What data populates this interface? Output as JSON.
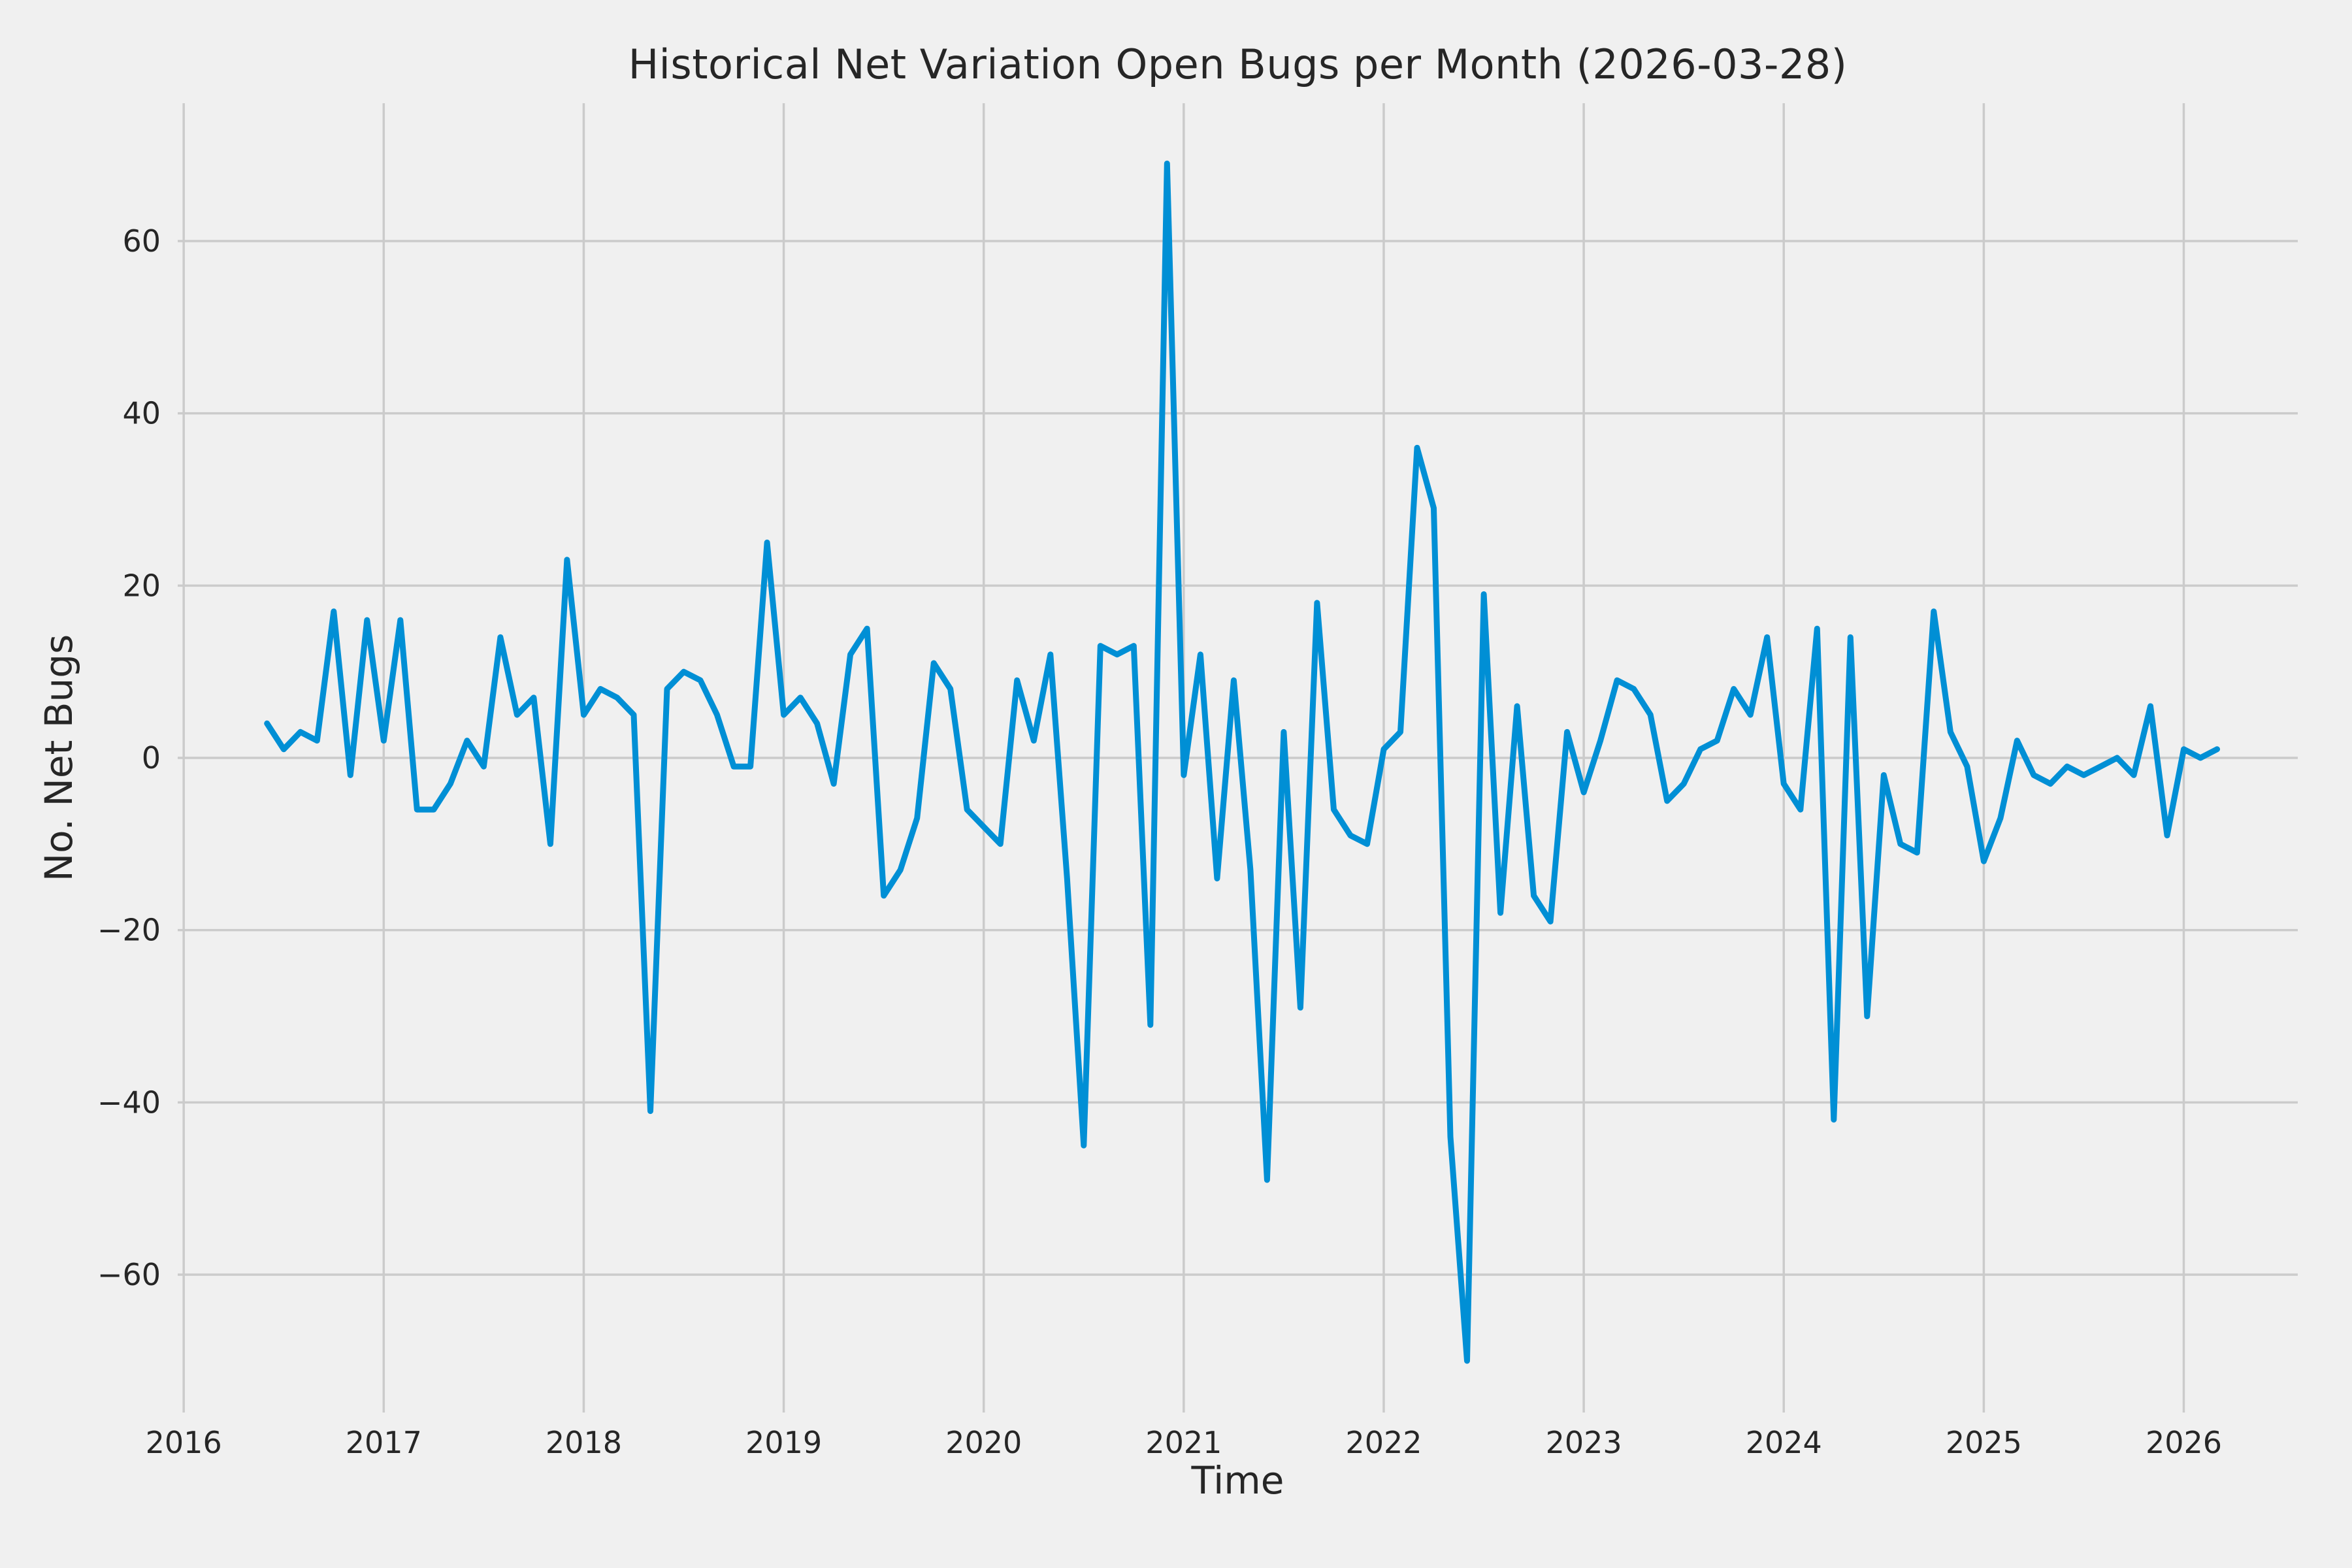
{
  "chart_data": {
    "type": "line",
    "title": "Historical Net Variation Open Bugs per Month (2026-03-28)",
    "xlabel": "Time",
    "ylabel": "No. Net Bugs",
    "x_start_year": 2016.4167,
    "x_step_years": 0.0833333,
    "series": [
      {
        "name": "net-variation-open-bugs",
        "values": [
          4,
          1,
          3,
          2,
          17,
          -2,
          16,
          2,
          16,
          -6,
          -6,
          -3,
          2,
          -1,
          14,
          5,
          7,
          -10,
          23,
          5,
          8,
          7,
          5,
          -41,
          8,
          10,
          9,
          5,
          -1,
          -1,
          25,
          5,
          7,
          4,
          -3,
          12,
          15,
          -16,
          -13,
          -7,
          11,
          8,
          -6,
          -8,
          -10,
          9,
          2,
          12,
          -14,
          -45,
          13,
          12,
          13,
          -31,
          69,
          -2,
          12,
          -14,
          9,
          -13,
          -49,
          3,
          -29,
          18,
          -6,
          -9,
          -10,
          1,
          3,
          36,
          29,
          -44,
          -70,
          19,
          -18,
          6,
          -16,
          -19,
          3,
          -4,
          2,
          9,
          8,
          5,
          -5,
          -3,
          1,
          2,
          8,
          5,
          14,
          -3,
          -6,
          15,
          -42,
          14,
          -30,
          -2,
          -10,
          -11,
          17,
          3,
          -1,
          -12,
          -7,
          2,
          -2,
          -3,
          -1,
          -2,
          -1,
          0,
          -2,
          6,
          -9,
          1,
          0,
          1
        ]
      }
    ],
    "xlim": [
      2015.97,
      2026.57
    ],
    "ylim": [
      -76,
      76
    ],
    "x_ticks": [
      2016,
      2017,
      2018,
      2019,
      2020,
      2021,
      2022,
      2023,
      2024,
      2025,
      2026
    ],
    "x_tick_labels": [
      "2016",
      "2017",
      "2018",
      "2019",
      "2020",
      "2021",
      "2022",
      "2023",
      "2024",
      "2025",
      "2026"
    ],
    "y_ticks": [
      -60,
      -40,
      -20,
      0,
      20,
      40,
      60
    ],
    "y_tick_labels": [
      "−60",
      "−40",
      "−20",
      "0",
      "20",
      "40",
      "60"
    ],
    "grid": true,
    "legend": "none",
    "colors": {
      "line": "#008fd5",
      "background": "#f0f0f0",
      "grid": "#cbcbcb",
      "text": "#262626"
    }
  }
}
